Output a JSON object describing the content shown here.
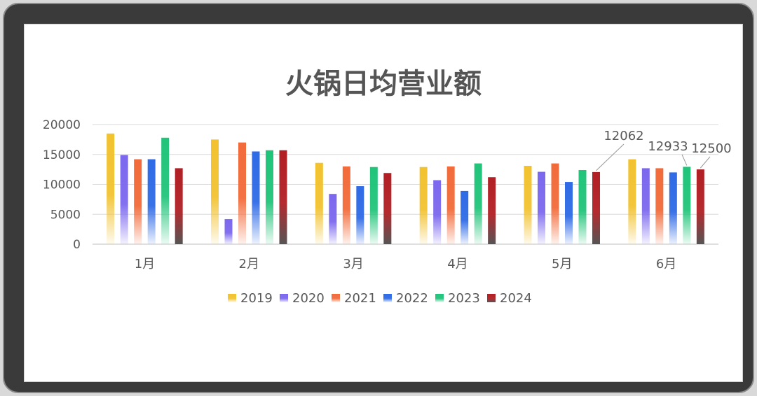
{
  "chart_data": {
    "type": "bar",
    "title": "火锅日均营业额",
    "categories": [
      "1月",
      "2月",
      "3月",
      "4月",
      "5月",
      "6月"
    ],
    "ylim": [
      0,
      20000
    ],
    "yticks": [
      0,
      5000,
      10000,
      15000,
      20000
    ],
    "grid": true,
    "legend_position": "bottom",
    "series": [
      {
        "name": "2019",
        "color": "#f2c230",
        "values": [
          18500,
          17500,
          13600,
          12900,
          13100,
          14200
        ]
      },
      {
        "name": "2020",
        "color": "#7b68ee",
        "values": [
          14900,
          4200,
          8400,
          10700,
          12100,
          12700
        ]
      },
      {
        "name": "2021",
        "color": "#f26b3a",
        "values": [
          14200,
          17000,
          13000,
          13000,
          13500,
          12700
        ]
      },
      {
        "name": "2022",
        "color": "#2f6be6",
        "values": [
          14200,
          15500,
          9700,
          8900,
          10400,
          12000
        ]
      },
      {
        "name": "2023",
        "color": "#21c47a",
        "values": [
          17800,
          15700,
          12900,
          13500,
          12400,
          12933
        ]
      },
      {
        "name": "2024",
        "color": "#b11f24",
        "values": [
          12700,
          15700,
          11900,
          11200,
          12062,
          12500
        ]
      }
    ],
    "annotations": [
      {
        "label": "12062",
        "category": "5月",
        "series": "2024"
      },
      {
        "label": "12933",
        "category": "6月",
        "series": "2023"
      },
      {
        "label": "12500",
        "category": "6月",
        "series": "2024"
      }
    ]
  }
}
